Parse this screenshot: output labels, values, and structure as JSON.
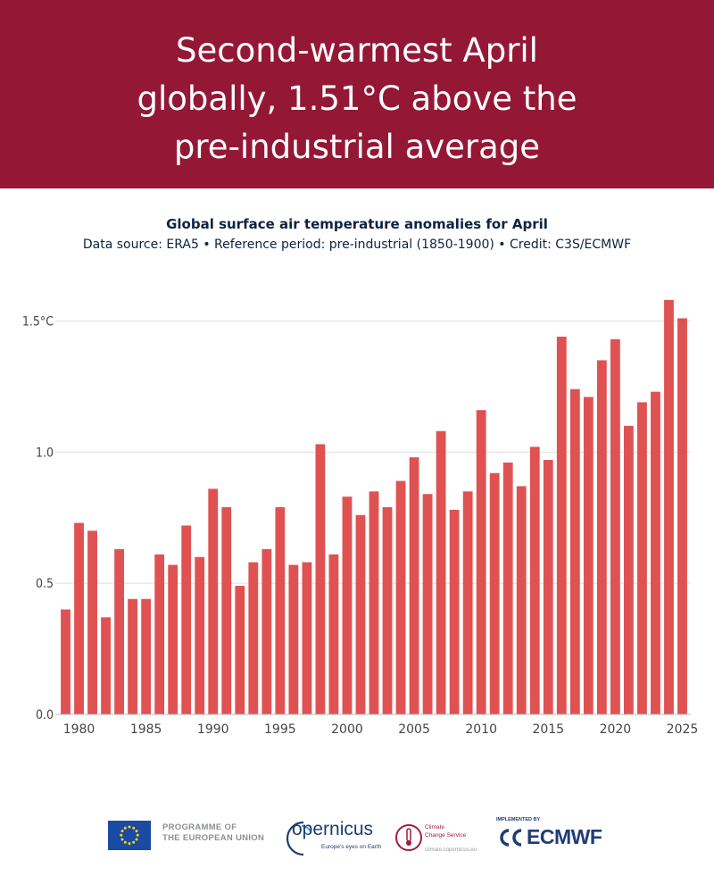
{
  "header": {
    "title_lines": [
      "Second-warmest April",
      "globally, 1.51°C above the",
      "pre-industrial average"
    ]
  },
  "chart_data": {
    "type": "bar",
    "title": "Global surface air temperature anomalies for April",
    "subtitle": "Data source: ERA5 • Reference period: pre-industrial (1850-1900) • Credit: C3S/ECMWF",
    "xlabel": "",
    "ylabel": "",
    "bar_color": "#e05252",
    "ylim": [
      0,
      1.6
    ],
    "yticks": [
      0,
      0.5,
      1.0,
      1.5
    ],
    "ytick_labels": [
      "0.0",
      "0.5",
      "1.0",
      "1.5°C"
    ],
    "xticks": [
      1980,
      1985,
      1990,
      1995,
      2000,
      2005,
      2010,
      2015,
      2020,
      2025
    ],
    "categories": [
      1979,
      1980,
      1981,
      1982,
      1983,
      1984,
      1985,
      1986,
      1987,
      1988,
      1989,
      1990,
      1991,
      1992,
      1993,
      1994,
      1995,
      1996,
      1997,
      1998,
      1999,
      2000,
      2001,
      2002,
      2003,
      2004,
      2005,
      2006,
      2007,
      2008,
      2009,
      2010,
      2011,
      2012,
      2013,
      2014,
      2015,
      2016,
      2017,
      2018,
      2019,
      2020,
      2021,
      2022,
      2023,
      2024,
      2025
    ],
    "values": [
      0.4,
      0.73,
      0.7,
      0.37,
      0.63,
      0.44,
      0.44,
      0.61,
      0.57,
      0.72,
      0.6,
      0.86,
      0.79,
      0.49,
      0.58,
      0.63,
      0.79,
      0.57,
      0.58,
      1.03,
      0.61,
      0.83,
      0.76,
      0.85,
      0.79,
      0.89,
      0.98,
      0.84,
      1.08,
      0.78,
      0.85,
      1.16,
      0.92,
      0.96,
      0.87,
      1.02,
      0.97,
      1.44,
      1.24,
      1.21,
      1.35,
      1.43,
      1.1,
      1.19,
      1.23,
      1.58,
      1.51
    ],
    "grid": true
  },
  "footer": {
    "eu_line1": "PROGRAMME OF",
    "eu_line2": "THE EUROPEAN UNION",
    "copernicus_name": "opernicus",
    "copernicus_tagline": "Europe's eyes on Earth",
    "ccs_line1": "Climate",
    "ccs_line2": "Change Service",
    "ccs_url": "climate.copernicus.eu",
    "ecmwf_implemented": "IMPLEMENTED BY",
    "ecmwf_name": "ECMWF"
  },
  "colors": {
    "banner": "#941835",
    "bar": "#e05252",
    "title_text": "#0d2440",
    "axis_text": "#444444",
    "grid": "#dddddd"
  }
}
